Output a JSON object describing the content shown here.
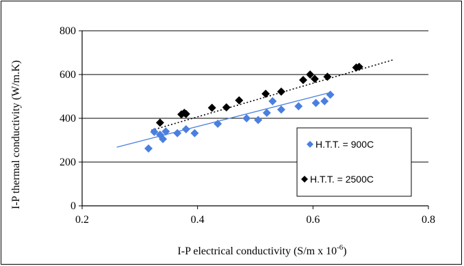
{
  "chart_data": {
    "type": "scatter",
    "xlabel": "I-P electrical conductivity (S/m x 10",
    "xlabel_sup": "-6",
    "xlabel_end": ")",
    "ylabel": "I-P thermal conductivity (W/m.K)",
    "xlim": [
      0.2,
      0.8
    ],
    "ylim": [
      0,
      800
    ],
    "xticks": [
      "0.2",
      "0.4",
      "0.6",
      "0.8"
    ],
    "yticks": [
      "0",
      "200",
      "400",
      "600",
      "800"
    ],
    "grid": "horizontal",
    "legend": "right-inside",
    "series": [
      {
        "name": "H.T.T. = 900C",
        "color": "#4a7fe0",
        "marker": "diamond",
        "trend": {
          "style": "solid",
          "x": [
            0.26,
            0.63
          ],
          "y": [
            268,
            518
          ]
        },
        "x": [
          0.315,
          0.325,
          0.335,
          0.34,
          0.345,
          0.365,
          0.38,
          0.395,
          0.435,
          0.485,
          0.505,
          0.52,
          0.53,
          0.545,
          0.575,
          0.605,
          0.62,
          0.63
        ],
        "y": [
          262,
          338,
          325,
          305,
          340,
          332,
          350,
          332,
          375,
          400,
          392,
          425,
          478,
          440,
          455,
          470,
          478,
          508
        ]
      },
      {
        "name": "H.T.T. = 2500C",
        "color": "#000000",
        "marker": "diamond",
        "trend": {
          "style": "dotted",
          "x": [
            0.32,
            0.74
          ],
          "y": [
            345,
            668
          ]
        },
        "x": [
          0.335,
          0.372,
          0.377,
          0.38,
          0.425,
          0.45,
          0.472,
          0.518,
          0.545,
          0.583,
          0.595,
          0.603,
          0.625,
          0.675,
          0.68
        ],
        "y": [
          380,
          418,
          425,
          420,
          448,
          450,
          482,
          512,
          522,
          575,
          600,
          580,
          590,
          632,
          635
        ]
      }
    ]
  }
}
